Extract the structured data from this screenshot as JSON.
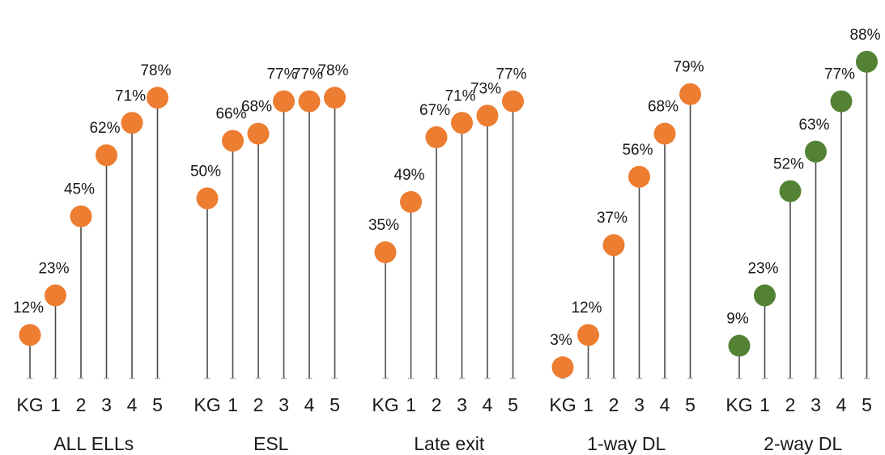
{
  "chart_data": {
    "type": "lollipop",
    "categories": [
      "KG",
      "1",
      "2",
      "3",
      "4",
      "5"
    ],
    "ylim": [
      0,
      100
    ],
    "grid": false,
    "legend": "none",
    "groups": [
      {
        "name": "ALL ELLs",
        "color": "#ed7d31",
        "values": [
          12,
          23,
          45,
          62,
          71,
          78
        ],
        "labels": [
          "12%",
          "23%",
          "45%",
          "62%",
          "71%",
          "78%"
        ]
      },
      {
        "name": "ESL",
        "color": "#ed7d31",
        "values": [
          50,
          66,
          68,
          77,
          77,
          78
        ],
        "labels": [
          "50%",
          "66%",
          "68%",
          "77%",
          "77%",
          "78%"
        ]
      },
      {
        "name": "Late exit",
        "color": "#ed7d31",
        "values": [
          35,
          49,
          67,
          71,
          73,
          77
        ],
        "labels": [
          "35%",
          "49%",
          "67%",
          "71%",
          "73%",
          "77%"
        ]
      },
      {
        "name": "1-way DL",
        "color": "#ed7d31",
        "values": [
          3,
          12,
          37,
          56,
          68,
          79
        ],
        "labels": [
          "3%",
          "12%",
          "37%",
          "56%",
          "68%",
          "79%"
        ]
      },
      {
        "name": "2-way DL",
        "color": "#548235",
        "values": [
          9,
          23,
          52,
          63,
          77,
          88
        ],
        "labels": [
          "9%",
          "23%",
          "52%",
          "63%",
          "77%",
          "88%"
        ]
      }
    ]
  }
}
